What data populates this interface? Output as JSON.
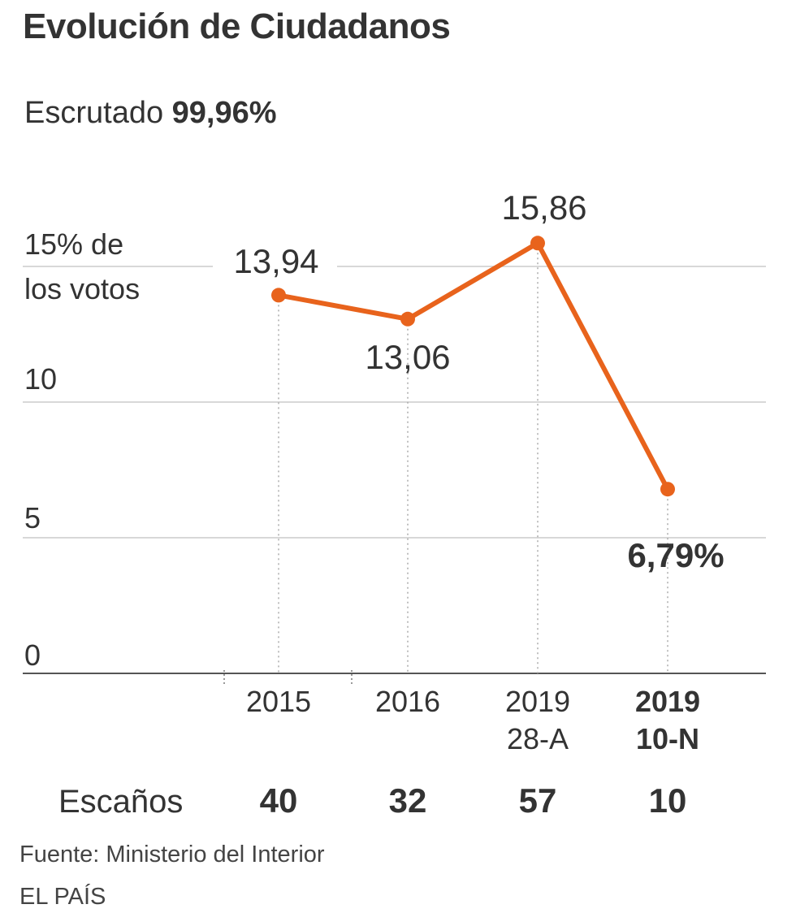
{
  "title": "Evolución de Ciudadanos",
  "scrutiny": {
    "label": "Escrutado",
    "value": "99,96%"
  },
  "chart_data": {
    "type": "line",
    "y_tick_labels": [
      "0",
      "5",
      "10",
      "15% de",
      "los votos"
    ],
    "y_ticks": [
      0,
      5,
      10,
      15
    ],
    "ylim": [
      0,
      15
    ],
    "grid": true,
    "categories": [
      {
        "line1": "2015",
        "line2": ""
      },
      {
        "line1": "2016",
        "line2": ""
      },
      {
        "line1": "2019",
        "line2": "28-A"
      },
      {
        "line1": "2019",
        "line2": "10-N"
      }
    ],
    "values": [
      13.94,
      13.06,
      15.86,
      6.79
    ],
    "value_labels": [
      "13,94",
      "13,06",
      "15,86",
      "6,79%"
    ],
    "seats_label": "Escaños",
    "seats": [
      "40",
      "32",
      "57",
      "10"
    ],
    "line_color": "#E8631C"
  },
  "source": "Fuente: Ministerio del Interior",
  "brand": "EL PAÍS"
}
